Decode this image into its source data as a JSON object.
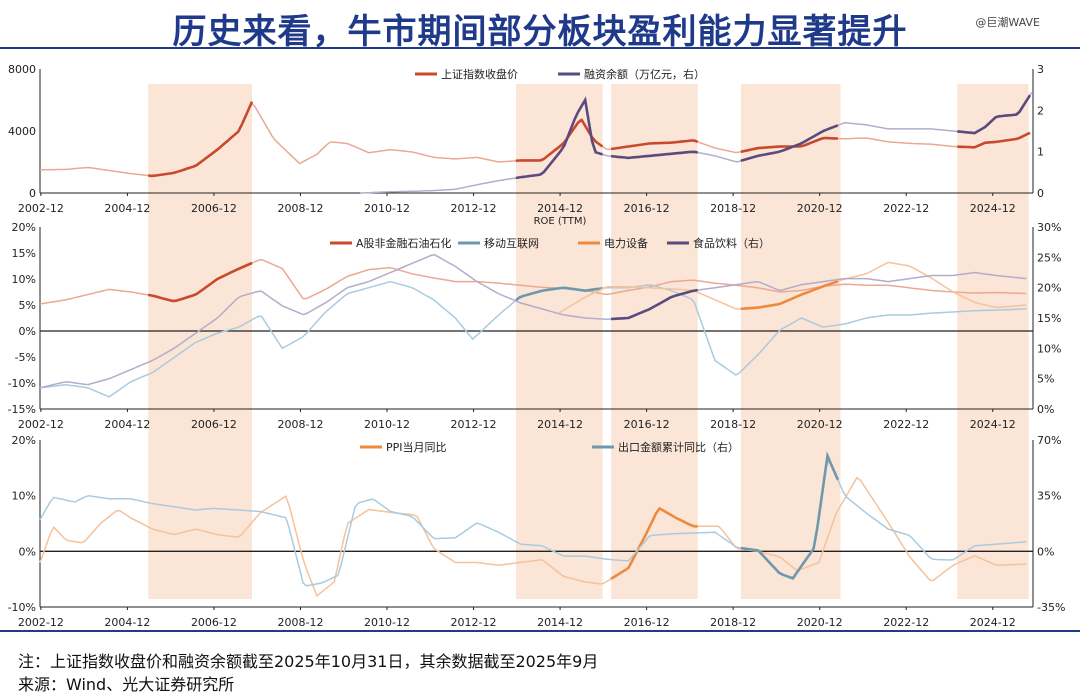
{
  "header": {
    "title": "历史来看，牛市期间部分板块盈利能力显著提升",
    "watermark": "@巨潮WAVE"
  },
  "footer": {
    "note": "注：上证指数收盘价和融资余额截至2025年10月31日，其余数据截至2025年9月",
    "source": "来源：Wind、光大证券研究所"
  },
  "colors": {
    "brand": "#1f3a8a",
    "shade": "#fbe5d6",
    "red": "#c84a2c",
    "red_light": "#eba892",
    "purple": "#5a4a80",
    "purple_light": "#b3accb",
    "blue_light": "#a9cbe0",
    "blue": "#6e98ad",
    "orange": "#ed8a3c",
    "orange_light": "#f6c29a",
    "axis": "#222222"
  },
  "x_ticks": [
    "2002-12",
    "2004-12",
    "2006-12",
    "2008-12",
    "2010-12",
    "2012-12",
    "2014-12",
    "2016-12",
    "2018-12",
    "2020-12",
    "2022-12",
    "2024-12"
  ],
  "bull_periods": [
    [
      2005.4,
      2007.8
    ],
    [
      2013.9,
      2015.9
    ],
    [
      2016.1,
      2018.1
    ],
    [
      2019.1,
      2021.4
    ],
    [
      2024.1,
      2025.75
    ]
  ],
  "chart_data": [
    {
      "type": "line",
      "id": "index_margin",
      "left_axis": {
        "ticks": [
          "0",
          "4000",
          "8000"
        ],
        "ylim": [
          0,
          8000
        ]
      },
      "right_axis": {
        "ticks": [
          "0",
          "1",
          "2",
          "3"
        ],
        "ylim": [
          0,
          3
        ]
      },
      "series": [
        {
          "name": "上证指数收盘价",
          "axis": "left",
          "color": "#c84a2c",
          "x": [
            2002.9,
            2003.5,
            2004.0,
            2004.5,
            2005.0,
            2005.5,
            2006.0,
            2006.5,
            2007.0,
            2007.5,
            2007.8,
            2008.3,
            2008.9,
            2009.3,
            2009.6,
            2010.0,
            2010.5,
            2011.0,
            2011.5,
            2012.0,
            2012.5,
            2013.0,
            2013.5,
            2014.0,
            2014.5,
            2015.0,
            2015.4,
            2015.7,
            2016.0,
            2016.5,
            2017.0,
            2017.5,
            2018.0,
            2018.5,
            2019.0,
            2019.5,
            2020.0,
            2020.5,
            2021.0,
            2021.5,
            2022.0,
            2022.5,
            2023.0,
            2023.5,
            2024.0,
            2024.5,
            2024.75,
            2025.0,
            2025.5,
            2025.83
          ],
          "y": [
            1500,
            1520,
            1650,
            1450,
            1250,
            1100,
            1300,
            1750,
            2800,
            4000,
            5900,
            3500,
            1900,
            2500,
            3300,
            3200,
            2600,
            2800,
            2650,
            2300,
            2200,
            2300,
            2000,
            2100,
            2100,
            3200,
            4800,
            3400,
            2800,
            3000,
            3200,
            3250,
            3400,
            2900,
            2600,
            2900,
            3000,
            3000,
            3550,
            3500,
            3550,
            3300,
            3200,
            3150,
            3000,
            2950,
            3250,
            3300,
            3500,
            3950
          ]
        },
        {
          "name": "融资余额（万亿元，右）",
          "axis": "right",
          "color": "#5a4a80",
          "x": [
            2010.3,
            2011.0,
            2011.5,
            2012.0,
            2012.5,
            2013.0,
            2013.5,
            2014.0,
            2014.5,
            2015.0,
            2015.3,
            2015.5,
            2015.7,
            2016.0,
            2016.5,
            2017.0,
            2017.5,
            2018.0,
            2018.5,
            2019.0,
            2019.5,
            2020.0,
            2020.5,
            2021.0,
            2021.5,
            2022.0,
            2022.5,
            2023.0,
            2023.5,
            2024.0,
            2024.5,
            2024.75,
            2025.0,
            2025.5,
            2025.83
          ],
          "y": [
            0.0,
            0.03,
            0.04,
            0.06,
            0.09,
            0.2,
            0.3,
            0.38,
            0.45,
            1.1,
            1.9,
            2.25,
            1.0,
            0.9,
            0.85,
            0.9,
            0.95,
            1.0,
            0.9,
            0.75,
            0.9,
            1.0,
            1.2,
            1.5,
            1.7,
            1.65,
            1.55,
            1.55,
            1.55,
            1.5,
            1.45,
            1.6,
            1.85,
            1.9,
            2.45
          ]
        }
      ]
    },
    {
      "type": "line",
      "id": "roe",
      "panel_title": "ROE (TTM)",
      "left_axis": {
        "ticks": [
          "-15%",
          "-10%",
          "-5%",
          "0%",
          "5%",
          "10%",
          "15%",
          "20%"
        ],
        "ylim": [
          -15,
          20
        ]
      },
      "right_axis": {
        "ticks": [
          "0%",
          "5%",
          "10%",
          "15%",
          "20%",
          "25%",
          "30%"
        ],
        "ylim": [
          0,
          30
        ]
      },
      "series": [
        {
          "name": "A股非金融石油石化",
          "axis": "left",
          "color": "#c84a2c",
          "x": [
            2002.9,
            2003.5,
            2004.0,
            2004.5,
            2005.0,
            2005.5,
            2006.0,
            2006.5,
            2007.0,
            2007.5,
            2008.0,
            2008.5,
            2009.0,
            2009.5,
            2010.0,
            2010.5,
            2011.0,
            2011.5,
            2012.0,
            2012.5,
            2013.0,
            2013.5,
            2014.0,
            2014.5,
            2015.0,
            2015.5,
            2016.0,
            2016.5,
            2017.0,
            2017.5,
            2018.0,
            2018.5,
            2019.0,
            2019.5,
            2020.0,
            2020.5,
            2021.0,
            2021.5,
            2022.0,
            2022.5,
            2023.0,
            2023.5,
            2024.0,
            2024.5,
            2025.0,
            2025.7
          ],
          "y": [
            5.2,
            6.0,
            7.0,
            8.0,
            7.5,
            6.8,
            5.7,
            7.0,
            10.0,
            12.0,
            13.8,
            12.0,
            6.0,
            8.0,
            10.5,
            11.8,
            12.2,
            11.0,
            10.2,
            9.5,
            9.5,
            9.2,
            8.8,
            8.4,
            8.2,
            7.8,
            7.0,
            7.8,
            8.5,
            9.5,
            9.8,
            9.2,
            8.8,
            8.3,
            7.5,
            7.8,
            8.6,
            9.0,
            8.8,
            8.8,
            8.3,
            7.8,
            7.5,
            7.3,
            7.4,
            7.2
          ]
        },
        {
          "name": "移动互联网",
          "axis": "right",
          "color": "#a9cbe0",
          "x": [
            2002.9,
            2003.5,
            2004.0,
            2004.5,
            2005.0,
            2005.5,
            2006.0,
            2006.5,
            2007.0,
            2007.5,
            2008.0,
            2008.5,
            2009.0,
            2009.5,
            2010.0,
            2010.5,
            2011.0,
            2011.5,
            2012.0,
            2012.5,
            2012.9,
            2013.5,
            2014.0,
            2014.5,
            2015.0,
            2015.5,
            2016.0,
            2016.5,
            2017.0,
            2017.5,
            2018.0,
            2018.5,
            2019.0,
            2019.5,
            2020.0,
            2020.5,
            2021.0,
            2021.5,
            2022.0,
            2022.5,
            2023.0,
            2023.5,
            2024.0,
            2024.5,
            2025.0,
            2025.7
          ],
          "y": [
            3.5,
            4.0,
            3.5,
            2.0,
            4.5,
            6.0,
            8.5,
            11.0,
            12.5,
            13.5,
            15.5,
            10.0,
            12.0,
            16.0,
            19.0,
            20.0,
            21.0,
            20.0,
            18.0,
            15.0,
            11.5,
            15.5,
            18.5,
            19.5,
            20.0,
            19.5,
            20.0,
            20.0,
            20.5,
            19.5,
            18.0,
            8.0,
            5.5,
            9.0,
            13.0,
            15.0,
            13.5,
            14.0,
            15.0,
            15.5,
            15.5,
            15.8,
            16.0,
            16.2,
            16.3,
            16.5
          ]
        },
        {
          "name": "电力设备",
          "axis": "left",
          "color": "#f6c29a",
          "x": [
            2014.9,
            2015.5,
            2016.0,
            2016.5,
            2017.0,
            2017.5,
            2018.0,
            2018.5,
            2019.0,
            2019.5,
            2020.0,
            2020.5,
            2021.0,
            2021.5,
            2022.0,
            2022.5,
            2023.0,
            2023.5,
            2024.0,
            2024.5,
            2025.0,
            2025.7
          ],
          "y": [
            3.5,
            6.5,
            8.5,
            8.5,
            8.3,
            8.1,
            7.8,
            6.0,
            4.2,
            4.5,
            5.2,
            7.0,
            8.6,
            10.0,
            11.0,
            13.2,
            12.5,
            10.2,
            7.5,
            5.5,
            4.5,
            5.0
          ]
        },
        {
          "name": "食品饮料（右）",
          "axis": "right",
          "color": "#b3accb",
          "x": [
            2002.9,
            2003.5,
            2004.0,
            2004.5,
            2005.0,
            2005.5,
            2006.0,
            2006.5,
            2007.0,
            2007.5,
            2008.0,
            2008.5,
            2009.0,
            2009.5,
            2010.0,
            2010.5,
            2011.0,
            2011.5,
            2012.0,
            2012.5,
            2013.0,
            2013.5,
            2014.0,
            2014.5,
            2015.0,
            2015.5,
            2016.0,
            2016.5,
            2017.0,
            2017.5,
            2018.0,
            2018.5,
            2019.0,
            2019.5,
            2020.0,
            2020.5,
            2021.0,
            2021.5,
            2022.0,
            2022.5,
            2023.0,
            2023.5,
            2024.0,
            2024.5,
            2025.0,
            2025.7
          ],
          "y": [
            3.5,
            4.5,
            4.0,
            5.0,
            6.5,
            8.0,
            10.0,
            12.5,
            15.0,
            18.5,
            19.5,
            17.0,
            15.5,
            17.5,
            20.0,
            21.0,
            22.5,
            24.0,
            25.5,
            23.5,
            21.0,
            19.0,
            17.5,
            16.5,
            15.5,
            15.0,
            14.8,
            15.0,
            16.5,
            18.5,
            19.5,
            20.0,
            20.5,
            21.0,
            19.5,
            20.5,
            21.0,
            21.5,
            21.5,
            21.0,
            21.5,
            22.0,
            22.0,
            22.5,
            22.0,
            21.5
          ]
        }
      ]
    },
    {
      "type": "line",
      "id": "ppi_export",
      "left_axis": {
        "ticks": [
          "-10%",
          "0%",
          "10%",
          "20%"
        ],
        "ylim": [
          -10,
          20
        ]
      },
      "right_axis": {
        "ticks": [
          "-35%",
          "0%",
          "35%",
          "70%"
        ],
        "ylim": [
          -35,
          70
        ]
      },
      "series": [
        {
          "name": "PPI当月同比",
          "axis": "left",
          "color": "#ed8a3c",
          "x": [
            2002.9,
            2003.2,
            2003.5,
            2003.9,
            2004.3,
            2004.7,
            2005.0,
            2005.5,
            2006.0,
            2006.5,
            2007.0,
            2007.5,
            2008.0,
            2008.6,
            2009.0,
            2009.3,
            2009.7,
            2010.0,
            2010.5,
            2011.0,
            2011.6,
            2012.0,
            2012.5,
            2013.0,
            2013.5,
            2014.0,
            2014.5,
            2015.0,
            2015.5,
            2015.9,
            2016.5,
            2016.9,
            2017.2,
            2017.6,
            2018.0,
            2018.6,
            2019.0,
            2019.5,
            2020.0,
            2020.4,
            2020.9,
            2021.3,
            2021.8,
            2022.2,
            2022.6,
            2023.0,
            2023.5,
            2024.0,
            2024.5,
            2025.0,
            2025.7
          ],
          "y": [
            -2.0,
            4.5,
            2.0,
            1.5,
            5.0,
            7.5,
            6.0,
            4.0,
            3.0,
            4.0,
            3.0,
            2.5,
            7.0,
            10.0,
            -2.0,
            -8.0,
            -5.5,
            5.0,
            7.5,
            7.0,
            6.5,
            0.5,
            -2.0,
            -2.0,
            -2.5,
            -2.0,
            -1.5,
            -4.5,
            -5.5,
            -5.9,
            -3.0,
            3.0,
            7.8,
            6.0,
            4.5,
            4.5,
            0.5,
            0.0,
            -1.0,
            -3.5,
            -2.0,
            6.8,
            13.5,
            8.8,
            4.0,
            -1.0,
            -5.5,
            -2.5,
            -0.8,
            -2.5,
            -2.3
          ]
        },
        {
          "name": "出口金额累计同比（右）",
          "axis": "right",
          "color": "#6e98ad",
          "x": [
            2002.9,
            2003.2,
            2003.7,
            2004.0,
            2004.5,
            2005.0,
            2005.5,
            2006.0,
            2006.5,
            2006.9,
            2007.5,
            2008.0,
            2008.6,
            2009.0,
            2009.4,
            2009.8,
            2010.2,
            2010.6,
            2011.0,
            2011.5,
            2012.0,
            2012.5,
            2013.0,
            2013.5,
            2014.0,
            2014.5,
            2015.0,
            2015.5,
            2016.0,
            2016.5,
            2017.0,
            2017.5,
            2018.0,
            2018.5,
            2019.0,
            2019.5,
            2020.0,
            2020.3,
            2020.8,
            2021.1,
            2021.5,
            2022.0,
            2022.5,
            2023.0,
            2023.5,
            2024.0,
            2024.5,
            2025.0,
            2025.7
          ],
          "y": [
            20.0,
            34.0,
            31.0,
            35.0,
            33.0,
            33.0,
            30.0,
            28.0,
            26.0,
            27.0,
            26.0,
            25.0,
            21.0,
            -22.0,
            -20.0,
            -15.0,
            30.0,
            33.0,
            25.0,
            22.0,
            8.0,
            8.5,
            18.0,
            12.0,
            4.5,
            3.5,
            -3.0,
            -3.0,
            -5.0,
            -6.0,
            10.0,
            11.0,
            11.5,
            12.0,
            2.5,
            0.5,
            -14.0,
            -17.0,
            2.5,
            60.0,
            35.0,
            24.0,
            14.0,
            10.0,
            -5.0,
            -5.5,
            3.5,
            4.5,
            6.0
          ]
        }
      ]
    }
  ]
}
